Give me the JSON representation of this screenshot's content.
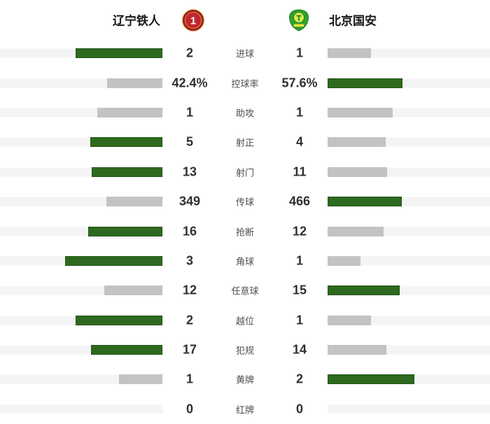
{
  "header": {
    "home": {
      "name": "辽宁铁人",
      "logo": "liaoning-tieren-badge"
    },
    "away": {
      "name": "北京国安",
      "logo": "beijing-guoan-badge"
    }
  },
  "colors": {
    "win_bar": "#2d691e",
    "lose_bar": "#c3c3c3",
    "row_stripe": "#f4f4f4",
    "value_text": "#303030",
    "label_text": "#4d4d4d",
    "home_badge_red": "#b02025",
    "home_badge_gold": "#e0a13f",
    "away_badge_green": "#33a02c",
    "away_badge_yellow": "#d9e94e"
  },
  "stats": [
    {
      "label": "进球",
      "home": "2",
      "away": "1",
      "home_value": 2,
      "away_value": 1
    },
    {
      "label": "控球率",
      "home": "42.4%",
      "away": "57.6%",
      "home_value": 42.4,
      "away_value": 57.6
    },
    {
      "label": "助攻",
      "home": "1",
      "away": "1",
      "home_value": 1,
      "away_value": 1
    },
    {
      "label": "射正",
      "home": "5",
      "away": "4",
      "home_value": 5,
      "away_value": 4
    },
    {
      "label": "射门",
      "home": "13",
      "away": "11",
      "home_value": 13,
      "away_value": 11
    },
    {
      "label": "传球",
      "home": "349",
      "away": "466",
      "home_value": 349,
      "away_value": 466
    },
    {
      "label": "抢断",
      "home": "16",
      "away": "12",
      "home_value": 16,
      "away_value": 12
    },
    {
      "label": "角球",
      "home": "3",
      "away": "1",
      "home_value": 3,
      "away_value": 1
    },
    {
      "label": "任意球",
      "home": "12",
      "away": "15",
      "home_value": 12,
      "away_value": 15
    },
    {
      "label": "越位",
      "home": "2",
      "away": "1",
      "home_value": 2,
      "away_value": 1
    },
    {
      "label": "犯规",
      "home": "17",
      "away": "14",
      "home_value": 17,
      "away_value": 14
    },
    {
      "label": "黄牌",
      "home": "1",
      "away": "2",
      "home_value": 1,
      "away_value": 2
    },
    {
      "label": "红牌",
      "home": "0",
      "away": "0",
      "home_value": 0,
      "away_value": 0
    }
  ],
  "layout_constants": {
    "max_pair_bar_width": 186
  }
}
